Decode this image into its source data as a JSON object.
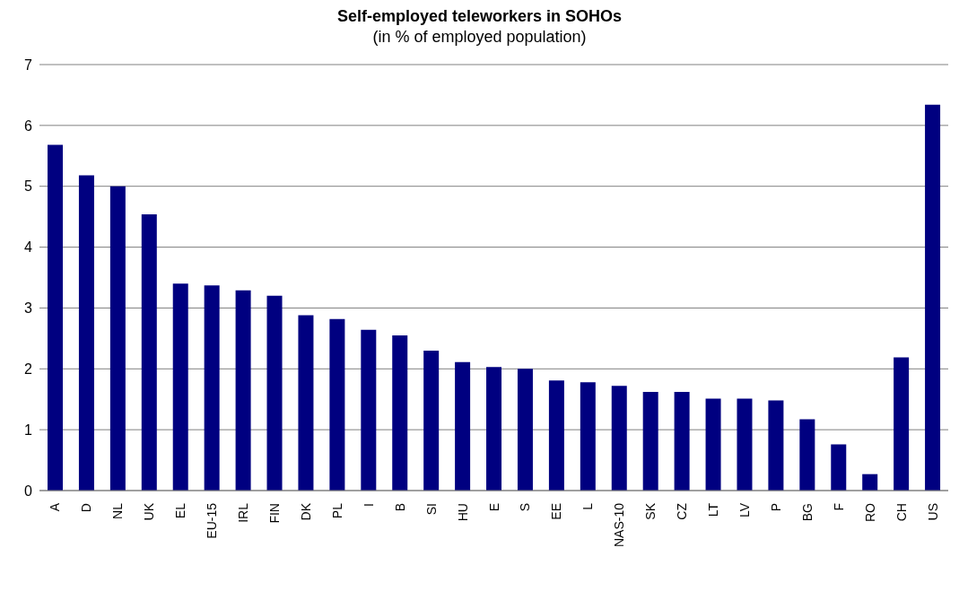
{
  "chart_data": {
    "type": "bar",
    "title": "Self-employed teleworkers in SOHOs",
    "subtitle": "(in % of employed population)",
    "categories": [
      "A",
      "D",
      "NL",
      "UK",
      "EL",
      "EU-15",
      "IRL",
      "FIN",
      "DK",
      "PL",
      "I",
      "B",
      "SI",
      "HU",
      "E",
      "S",
      "EE",
      "L",
      "NAS-10",
      "SK",
      "CZ",
      "LT",
      "LV",
      "P",
      "BG",
      "F",
      "RO",
      "CH",
      "US"
    ],
    "values": [
      5.68,
      5.18,
      5.0,
      4.54,
      3.4,
      3.37,
      3.29,
      3.2,
      2.88,
      2.82,
      2.64,
      2.55,
      2.3,
      2.11,
      2.03,
      2.0,
      1.81,
      1.78,
      1.72,
      1.62,
      1.62,
      1.51,
      1.51,
      1.48,
      1.17,
      0.76,
      0.27,
      2.19,
      6.34
    ],
    "color": "#000080",
    "ylim": [
      0,
      7
    ],
    "yticks": [
      0,
      1,
      2,
      3,
      4,
      5,
      6,
      7
    ],
    "grid": "y"
  }
}
